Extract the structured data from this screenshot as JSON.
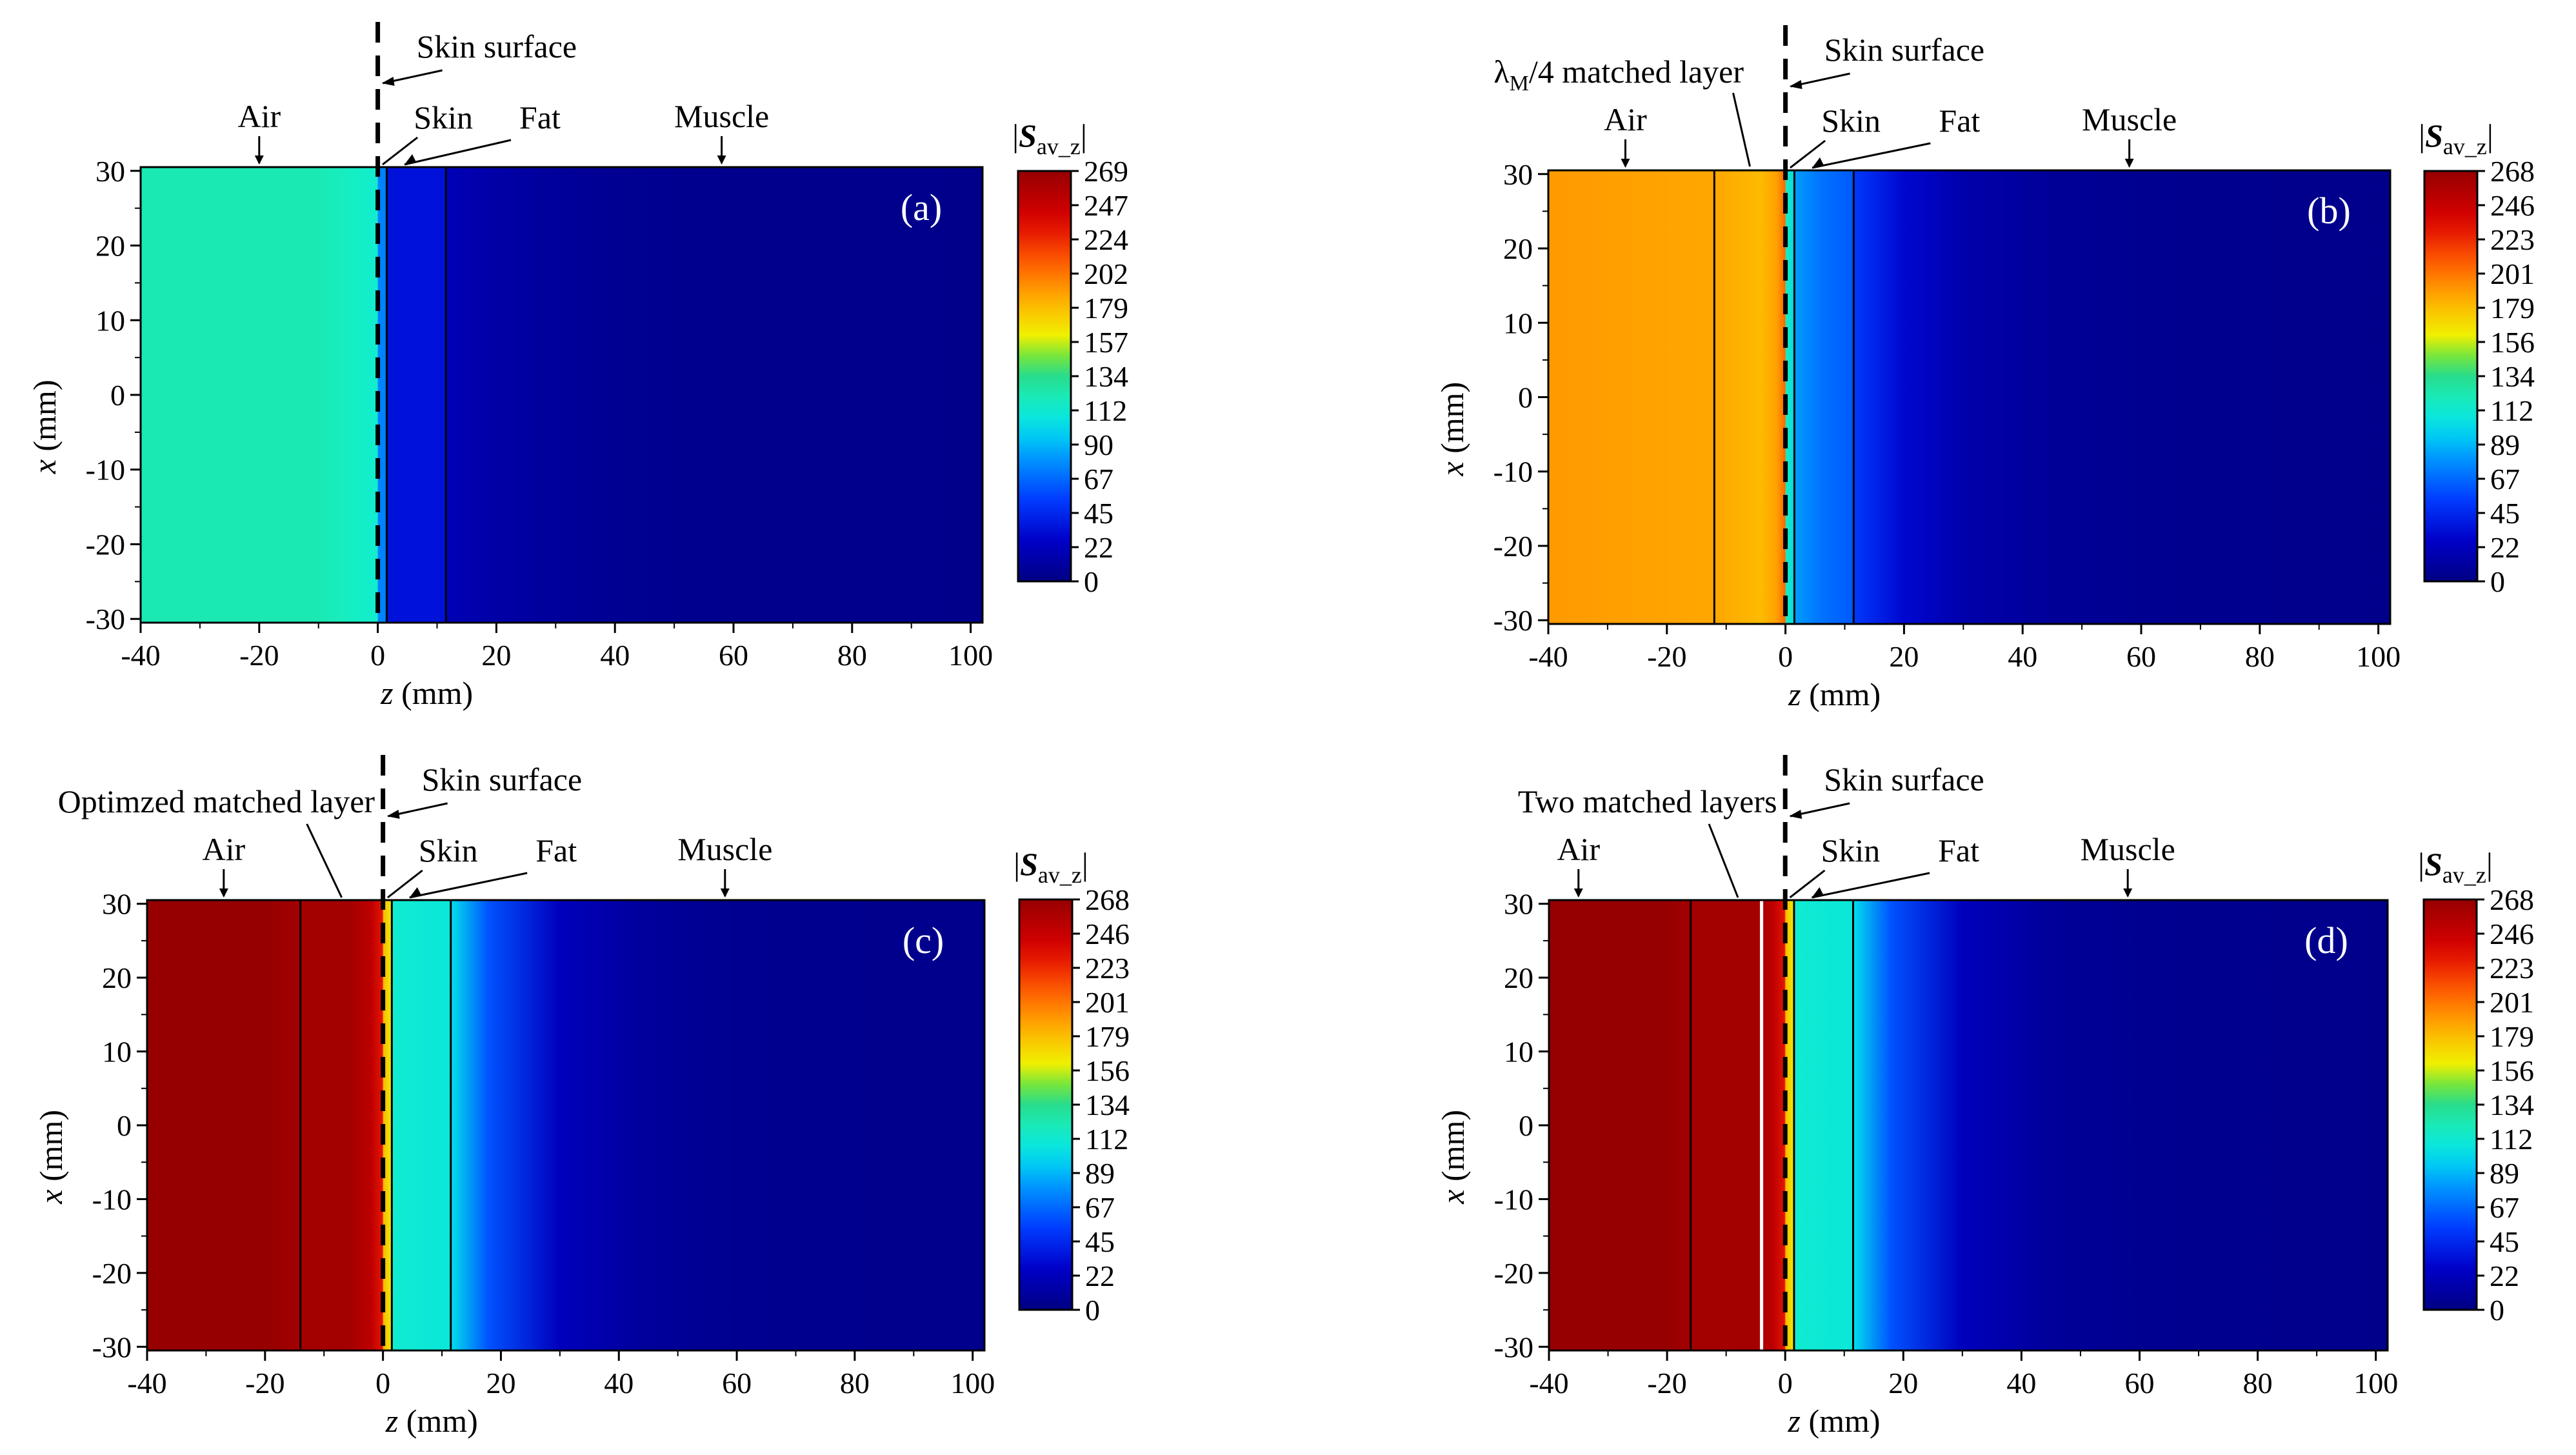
{
  "figure": {
    "panels_description": "Four heatmaps of time-averaged Poynting vector magnitude |S_av_z| vs z and x"
  },
  "chart_data": [
    {
      "type": "heatmap",
      "panel_tag": "(a)",
      "xlabel_var": "z",
      "xlabel_unit": " (mm)",
      "ylabel_var": "x",
      "ylabel_unit": " (mm)",
      "xlim": [
        -40,
        102
      ],
      "ylim": [
        -30.5,
        30.5
      ],
      "x_ticks": [
        "-40",
        "-20",
        "0",
        "20",
        "40",
        "60",
        "80",
        "100"
      ],
      "y_ticks": [
        "30",
        "20",
        "10",
        "0",
        "-10",
        "-20",
        "-30"
      ],
      "colorbar_title_main": "S",
      "colorbar_title_sub": "av_z",
      "colorbar_ticks": [
        "269",
        "247",
        "224",
        "202",
        "179",
        "157",
        "134",
        "112",
        "90",
        "67",
        "45",
        "22",
        "0"
      ],
      "colorbar_range": [
        0,
        269
      ],
      "region_labels": [
        {
          "text": "Air",
          "z": -20
        },
        {
          "text": "Skin",
          "z": 8
        },
        {
          "text": "Fat",
          "z": 23
        },
        {
          "text": "Muscle",
          "z": 58
        }
      ],
      "skin_surface_label": "Skin surface",
      "matched_layer_label": "",
      "layer_boundaries_mm": [
        1.5,
        11.5
      ],
      "white_boundaries_mm": [],
      "profile_z_mm": [
        -40,
        -10,
        -4,
        -0.1,
        0.1,
        1.5,
        1.6,
        11.5,
        11.6,
        20,
        30,
        40,
        60,
        102
      ],
      "profile_S": [
        122,
        122,
        117,
        113,
        75,
        75,
        35,
        35,
        20,
        14,
        9,
        6,
        4,
        3
      ]
    },
    {
      "type": "heatmap",
      "panel_tag": "(b)",
      "xlabel_var": "z",
      "xlabel_unit": " (mm)",
      "ylabel_var": "x",
      "ylabel_unit": " (mm)",
      "xlim": [
        -40,
        102
      ],
      "ylim": [
        -30.5,
        30.5
      ],
      "x_ticks": [
        "-40",
        "-20",
        "0",
        "20",
        "40",
        "60",
        "80",
        "100"
      ],
      "y_ticks": [
        "30",
        "20",
        "10",
        "0",
        "-10",
        "-20",
        "-30"
      ],
      "colorbar_title_main": "S",
      "colorbar_title_sub": "av_z",
      "colorbar_ticks": [
        "268",
        "246",
        "223",
        "201",
        "179",
        "156",
        "134",
        "112",
        "89",
        "67",
        "45",
        "22",
        "0"
      ],
      "colorbar_range": [
        0,
        268
      ],
      "region_labels": [
        {
          "text": "Air",
          "z": -27
        },
        {
          "text": "Skin",
          "z": 8
        },
        {
          "text": "Fat",
          "z": 25
        },
        {
          "text": "Muscle",
          "z": 58
        }
      ],
      "skin_surface_label": "Skin surface",
      "matched_layer_label_pre": "λ",
      "matched_layer_label_sub": "M",
      "matched_layer_label_post": "/4 matched layer",
      "layer_boundaries_mm": [
        -12,
        1.5,
        11.5
      ],
      "white_boundaries_mm": [],
      "profile_z_mm": [
        -40,
        -25,
        -12,
        -4,
        -1.5,
        -0.1,
        0.1,
        1.5,
        1.6,
        6,
        11.5,
        11.6,
        20,
        30,
        45,
        60,
        102
      ],
      "profile_S": [
        190,
        188,
        186,
        180,
        188,
        205,
        120,
        100,
        82,
        70,
        62,
        52,
        30,
        16,
        8,
        5,
        3
      ]
    },
    {
      "type": "heatmap",
      "panel_tag": "(c)",
      "xlabel_var": "z",
      "xlabel_unit": " (mm)",
      "ylabel_var": "x",
      "ylabel_unit": " (mm)",
      "xlim": [
        -40,
        102
      ],
      "ylim": [
        -30.5,
        30.5
      ],
      "x_ticks": [
        "-40",
        "-20",
        "0",
        "20",
        "40",
        "60",
        "80",
        "100"
      ],
      "y_ticks": [
        "30",
        "20",
        "10",
        "0",
        "-10",
        "-20",
        "-30"
      ],
      "colorbar_title_main": "S",
      "colorbar_title_sub": "av_z",
      "colorbar_ticks": [
        "268",
        "246",
        "223",
        "201",
        "179",
        "156",
        "134",
        "112",
        "89",
        "67",
        "45",
        "22",
        "0"
      ],
      "colorbar_range": [
        0,
        268
      ],
      "region_labels": [
        {
          "text": "Air",
          "z": -27
        },
        {
          "text": "Skin",
          "z": 8
        },
        {
          "text": "Fat",
          "z": 25
        },
        {
          "text": "Muscle",
          "z": 58
        }
      ],
      "skin_surface_label": "Skin surface",
      "matched_layer_label": "Optimzed matched layer",
      "layer_boundaries_mm": [
        -14,
        1.5,
        11.5
      ],
      "white_boundaries_mm": [],
      "profile_z_mm": [
        -40,
        -20,
        -14,
        -6,
        -2,
        -0.1,
        0.1,
        1.5,
        1.6,
        6,
        11.5,
        11.6,
        18,
        30,
        45,
        60,
        102
      ],
      "profile_S": [
        268,
        268,
        262,
        262,
        250,
        230,
        180,
        160,
        112,
        110,
        108,
        100,
        60,
        22,
        9,
        5,
        3
      ]
    },
    {
      "type": "heatmap",
      "panel_tag": "(d)",
      "xlabel_var": "z",
      "xlabel_unit": " (mm)",
      "ylabel_var": "x",
      "ylabel_unit": " (mm)",
      "xlim": [
        -40,
        102
      ],
      "ylim": [
        -30.5,
        30.5
      ],
      "x_ticks": [
        "-40",
        "-20",
        "0",
        "20",
        "40",
        "60",
        "80",
        "100"
      ],
      "y_ticks": [
        "30",
        "20",
        "10",
        "0",
        "-10",
        "-20",
        "-30"
      ],
      "colorbar_title_main": "S",
      "colorbar_title_sub": "av_z",
      "colorbar_ticks": [
        "268",
        "246",
        "223",
        "201",
        "179",
        "156",
        "134",
        "112",
        "89",
        "67",
        "45",
        "22",
        "0"
      ],
      "colorbar_range": [
        0,
        268
      ],
      "region_labels": [
        {
          "text": "Air",
          "z": -35
        },
        {
          "text": "Skin",
          "z": 8
        },
        {
          "text": "Fat",
          "z": 25
        },
        {
          "text": "Muscle",
          "z": 58
        }
      ],
      "skin_surface_label": "Skin surface",
      "matched_layer_label": "Two matched layers",
      "layer_boundaries_mm": [
        -16,
        1.5,
        11.5
      ],
      "white_boundaries_mm": [
        -4
      ],
      "profile_z_mm": [
        -40,
        -20,
        -16,
        -5,
        -2,
        -0.1,
        0.1,
        1.5,
        1.6,
        6,
        11.5,
        11.6,
        18,
        30,
        45,
        60,
        102
      ],
      "profile_S": [
        268,
        268,
        262,
        262,
        250,
        230,
        180,
        160,
        112,
        110,
        108,
        100,
        60,
        22,
        9,
        5,
        3
      ]
    }
  ]
}
